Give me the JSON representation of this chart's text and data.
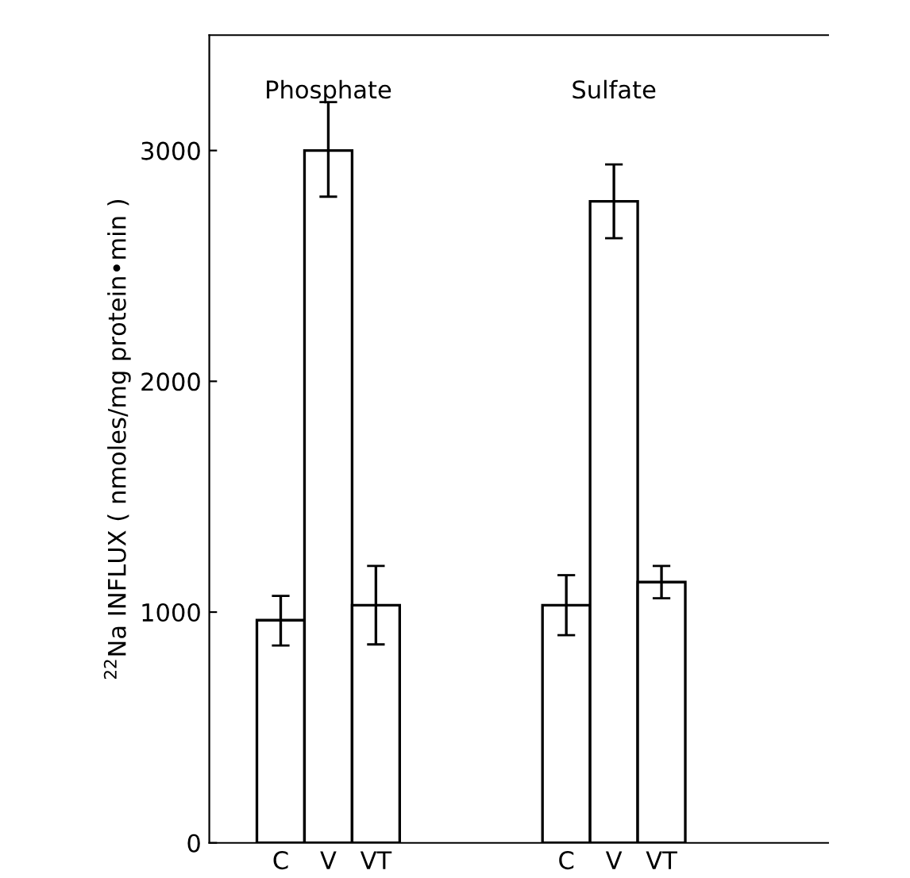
{
  "chart_data": {
    "type": "bar",
    "ylabel": "$^{22}$Na INFLUX ( nmoles/mg protein•min )",
    "categories": [
      "C",
      "V",
      "VT",
      null,
      null,
      null,
      "C",
      "V",
      "VT"
    ],
    "values": [
      965,
      3000,
      1030,
      null,
      null,
      null,
      1030,
      2780,
      1130
    ],
    "errors": [
      [
        855,
        1070
      ],
      [
        2800,
        3210
      ],
      [
        860,
        1200
      ],
      null,
      null,
      null,
      [
        900,
        1160
      ],
      [
        2620,
        2940
      ],
      [
        1060,
        1200
      ]
    ],
    "color": "#ffffff",
    "annotations": [
      "Phosphate",
      "Sulfate"
    ],
    "ylim": [
      0,
      3500
    ],
    "yticks": [
      0,
      1000,
      2000,
      3000
    ],
    "grid": false
  }
}
